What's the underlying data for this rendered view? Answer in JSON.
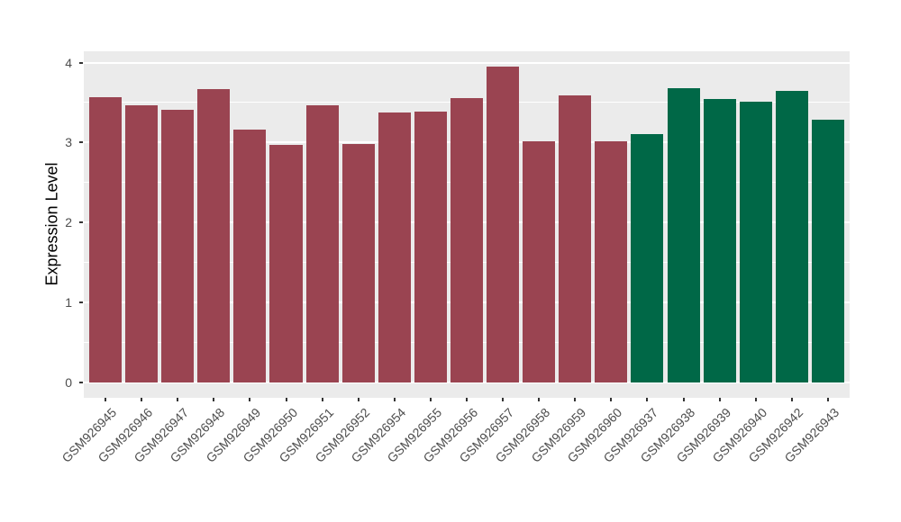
{
  "style": {
    "background": "#FFFFFF",
    "panel_bg": "#EBEBEB",
    "grid_color": "#FFFFFF",
    "axis_tick_color": "#333333",
    "tick_label_color": "#4D4D4D",
    "axis_title_color": "#000000"
  },
  "chart_data": {
    "type": "bar",
    "title": "",
    "xlabel": "",
    "ylabel": "Expression Level",
    "ylim": [
      0,
      4.15
    ],
    "yticks": [
      "0",
      "1",
      "2",
      "3",
      "4"
    ],
    "grid": "major and minor white gridlines on gray panel",
    "legend": "none",
    "categories": [
      "GSM926945",
      "GSM926946",
      "GSM926947",
      "GSM926948",
      "GSM926949",
      "GSM926950",
      "GSM926951",
      "GSM926952",
      "GSM926954",
      "GSM926955",
      "GSM926956",
      "GSM926957",
      "GSM926958",
      "GSM926959",
      "GSM926960",
      "GSM926937",
      "GSM926938",
      "GSM926939",
      "GSM926940",
      "GSM926942",
      "GSM926943"
    ],
    "values": [
      3.57,
      3.47,
      3.41,
      3.67,
      3.16,
      2.97,
      3.47,
      2.98,
      3.37,
      3.39,
      3.55,
      3.95,
      3.02,
      3.59,
      3.02,
      3.1,
      3.68,
      3.54,
      3.51,
      3.64,
      3.28
    ],
    "bar_groups": [
      0,
      0,
      0,
      0,
      0,
      0,
      0,
      0,
      0,
      0,
      0,
      0,
      0,
      0,
      0,
      1,
      1,
      1,
      1,
      1,
      1
    ],
    "group_colors": [
      "#9A4451",
      "#006847"
    ]
  }
}
